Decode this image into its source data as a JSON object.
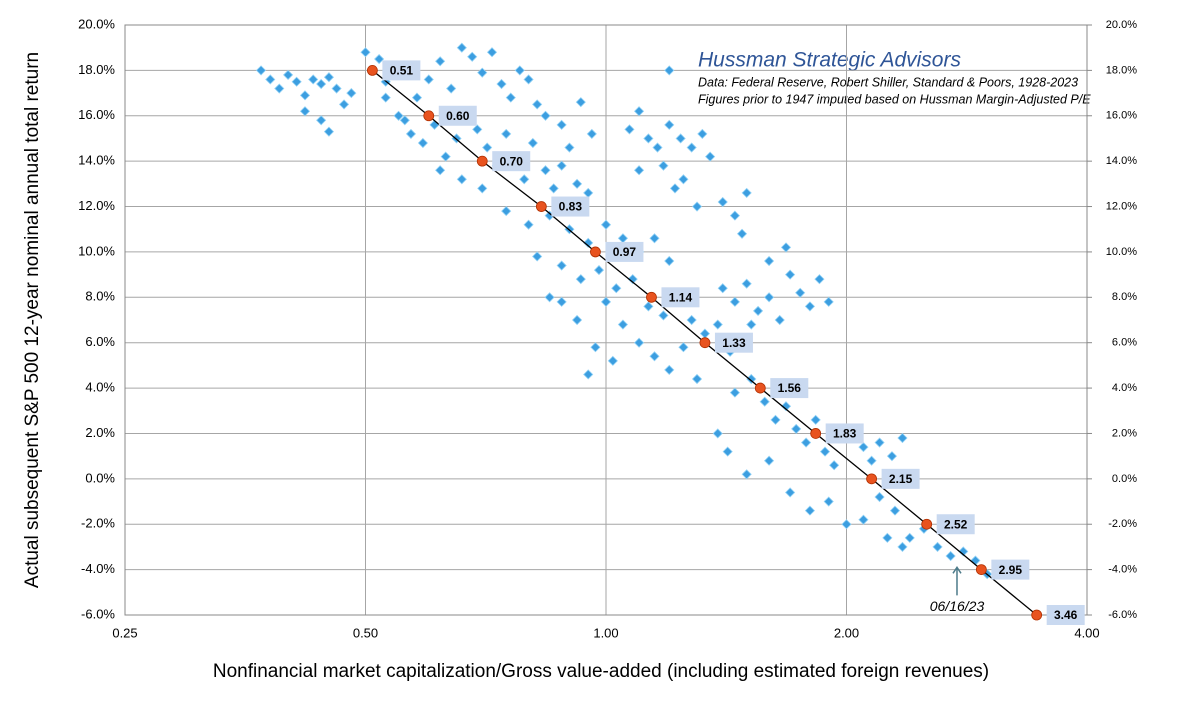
{
  "chart_data": {
    "type": "scatter",
    "title": "Hussman Strategic Advisors",
    "subtitle": [
      "Data: Federal Reserve, Robert Shiller, Standard & Poors, 1928-2023",
      "Figures prior to 1947 imputed based on Hussman Margin-Adjusted P/E"
    ],
    "x_label": "Nonfinancial market capitalization/Gross value-added (including estimated foreign revenues)",
    "y_label": "Actual subsequent S&P 500 12-year nominal annual total return",
    "x_scale": "log",
    "grid": true,
    "xlim": [
      0.25,
      4
    ],
    "xticks": [
      {
        "value": 0.25,
        "label": "0.25"
      },
      {
        "value": 0.5,
        "label": "0.50"
      },
      {
        "value": 1,
        "label": "1.00"
      },
      {
        "value": 2,
        "label": "2.00"
      },
      {
        "value": 4,
        "label": "4.00"
      }
    ],
    "ylim": [
      -6,
      20
    ],
    "yticks": [
      {
        "value": -6,
        "label": "-6.0%"
      },
      {
        "value": -4,
        "label": "-4.0%"
      },
      {
        "value": -2,
        "label": "-2.0%"
      },
      {
        "value": 0,
        "label": "0.0%"
      },
      {
        "value": 2,
        "label": "2.0%"
      },
      {
        "value": 4,
        "label": "4.0%"
      },
      {
        "value": 6,
        "label": "6.0%"
      },
      {
        "value": 8,
        "label": "8.0%"
      },
      {
        "value": 10,
        "label": "10.0%"
      },
      {
        "value": 12,
        "label": "12.0%"
      },
      {
        "value": 14,
        "label": "14.0%"
      },
      {
        "value": 16,
        "label": "16.0%"
      },
      {
        "value": 18,
        "label": "18.0%"
      },
      {
        "value": 20,
        "label": "20.0%"
      }
    ],
    "y2lim": [
      -6,
      20
    ],
    "y2ticks": [
      {
        "value": -6,
        "label": "-6.0%"
      },
      {
        "value": -4,
        "label": "-4.0%"
      },
      {
        "value": -2,
        "label": "-2.0%"
      },
      {
        "value": 0,
        "label": "0.0%"
      },
      {
        "value": 2,
        "label": "2.0%"
      },
      {
        "value": 4,
        "label": "4.0%"
      },
      {
        "value": 6,
        "label": "6.0%"
      },
      {
        "value": 8,
        "label": "8.0%"
      },
      {
        "value": 10,
        "label": "10.0%"
      },
      {
        "value": 12,
        "label": "12.0%"
      },
      {
        "value": 14,
        "label": "14.0%"
      },
      {
        "value": 16,
        "label": "16.0%"
      },
      {
        "value": 18,
        "label": "18.0%"
      },
      {
        "value": 20,
        "label": "20.0%"
      }
    ],
    "series": [
      {
        "kind": "scatter",
        "color": "#3c9ee0",
        "x": [
          0.37,
          0.38,
          0.39,
          0.4,
          0.41,
          0.42,
          0.43,
          0.44,
          0.45,
          0.46,
          0.42,
          0.44,
          0.45,
          0.47,
          0.48,
          0.5,
          0.52,
          0.53,
          0.55,
          0.57,
          0.58,
          0.6,
          0.62,
          0.64,
          0.66,
          0.68,
          0.7,
          0.72,
          0.74,
          0.76,
          0.78,
          0.8,
          0.82,
          0.55,
          0.57,
          0.59,
          0.61,
          0.63,
          0.65,
          0.67,
          0.69,
          0.71,
          0.73,
          0.75,
          0.77,
          0.79,
          0.81,
          0.84,
          0.86,
          0.88,
          0.9,
          0.92,
          0.95,
          0.62,
          0.66,
          0.7,
          0.53,
          0.56,
          0.84,
          0.88,
          0.93,
          0.96,
          1.2,
          1.07,
          1.1,
          1.13,
          1.16,
          1.2,
          1.24,
          1.28,
          1.32,
          1.35,
          1.1,
          1.18,
          1.25,
          1.4,
          1.5,
          1.45,
          1.3,
          1.22,
          0.75,
          0.8,
          0.85,
          0.9,
          0.95,
          1.0,
          1.05,
          1.1,
          1.15,
          1.2,
          0.82,
          0.88,
          0.93,
          0.98,
          1.03,
          1.08,
          1.13,
          1.18,
          1.23,
          1.28,
          1.33,
          1.38,
          1.43,
          1.0,
          1.05,
          1.1,
          1.15,
          1.2,
          1.25,
          1.3,
          0.92,
          0.97,
          0.95,
          1.02,
          0.88,
          0.85,
          1.4,
          1.45,
          1.5,
          1.55,
          1.6,
          1.65,
          1.7,
          1.75,
          1.8,
          1.85,
          1.9,
          1.6,
          1.68,
          1.48,
          1.52,
          1.45,
          1.52,
          1.58,
          1.63,
          1.68,
          1.73,
          1.78,
          1.83,
          1.88,
          1.93,
          1.98,
          2.05,
          2.1,
          2.15,
          2.2,
          2.28,
          2.35,
          1.38,
          1.42,
          1.5,
          1.6,
          1.7,
          1.8,
          1.9,
          2.0,
          2.1,
          2.2,
          2.3,
          2.4,
          2.5,
          2.6,
          2.7,
          2.8,
          2.9,
          3.0,
          3.1,
          2.25,
          2.35
        ],
        "values": [
          18.0,
          17.6,
          17.2,
          17.8,
          17.5,
          16.9,
          17.6,
          17.4,
          17.7,
          17.2,
          16.2,
          15.8,
          15.3,
          16.5,
          17.0,
          18.8,
          18.5,
          17.5,
          18.2,
          17.8,
          16.8,
          17.6,
          18.4,
          17.2,
          19.0,
          18.6,
          17.9,
          18.8,
          17.4,
          16.8,
          18.0,
          17.6,
          16.5,
          16.0,
          15.2,
          14.8,
          15.6,
          14.2,
          15.0,
          16.2,
          15.4,
          14.6,
          13.8,
          15.2,
          14.0,
          13.2,
          14.8,
          13.6,
          12.8,
          13.8,
          14.6,
          13.0,
          12.6,
          13.6,
          13.2,
          12.8,
          16.8,
          15.8,
          16.0,
          15.6,
          16.6,
          15.2,
          18.0,
          15.4,
          16.2,
          15.0,
          14.6,
          15.6,
          15.0,
          14.6,
          15.2,
          14.2,
          13.6,
          13.8,
          13.2,
          12.2,
          12.6,
          11.6,
          12.0,
          12.8,
          11.8,
          11.2,
          11.6,
          11.0,
          10.4,
          11.2,
          10.6,
          10.0,
          10.6,
          9.6,
          9.8,
          9.4,
          8.8,
          9.2,
          8.4,
          8.8,
          7.6,
          7.2,
          8.2,
          7.0,
          6.4,
          6.8,
          5.6,
          7.8,
          6.8,
          6.0,
          5.4,
          4.8,
          5.8,
          4.4,
          7.0,
          5.8,
          4.6,
          5.2,
          7.8,
          8.0,
          8.4,
          7.8,
          8.6,
          7.4,
          8.0,
          7.0,
          9.0,
          8.2,
          7.6,
          8.8,
          7.8,
          9.6,
          10.2,
          10.8,
          6.8,
          3.8,
          4.4,
          3.4,
          2.6,
          3.2,
          2.2,
          1.6,
          2.6,
          1.2,
          0.6,
          1.8,
          2.2,
          1.4,
          0.8,
          1.6,
          1.0,
          1.8,
          2.0,
          1.2,
          0.2,
          0.8,
          -0.6,
          -1.4,
          -1.0,
          -2.0,
          -1.8,
          -0.8,
          -1.4,
          -2.6,
          -2.2,
          -3.0,
          -3.4,
          -3.2,
          -3.6,
          -4.2,
          -3.8,
          -2.6,
          -3.0
        ]
      },
      {
        "kind": "line",
        "color": "#e8531f",
        "x": [
          0.51,
          0.6,
          0.7,
          0.83,
          0.97,
          1.14,
          1.33,
          1.56,
          1.83,
          2.15,
          2.52,
          2.95,
          3.46
        ],
        "values": [
          18,
          16,
          14,
          12,
          10,
          8,
          6,
          4,
          2,
          0,
          -2,
          -4,
          -6
        ],
        "point_labels": [
          "0.51",
          "0.60",
          "0.70",
          "0.83",
          "0.97",
          "1.14",
          "1.33",
          "1.56",
          "1.83",
          "2.15",
          "2.52",
          "2.95",
          "3.46"
        ]
      }
    ],
    "annotation": {
      "text": "06/16/23",
      "x": 2.75,
      "y": -3.9
    }
  }
}
